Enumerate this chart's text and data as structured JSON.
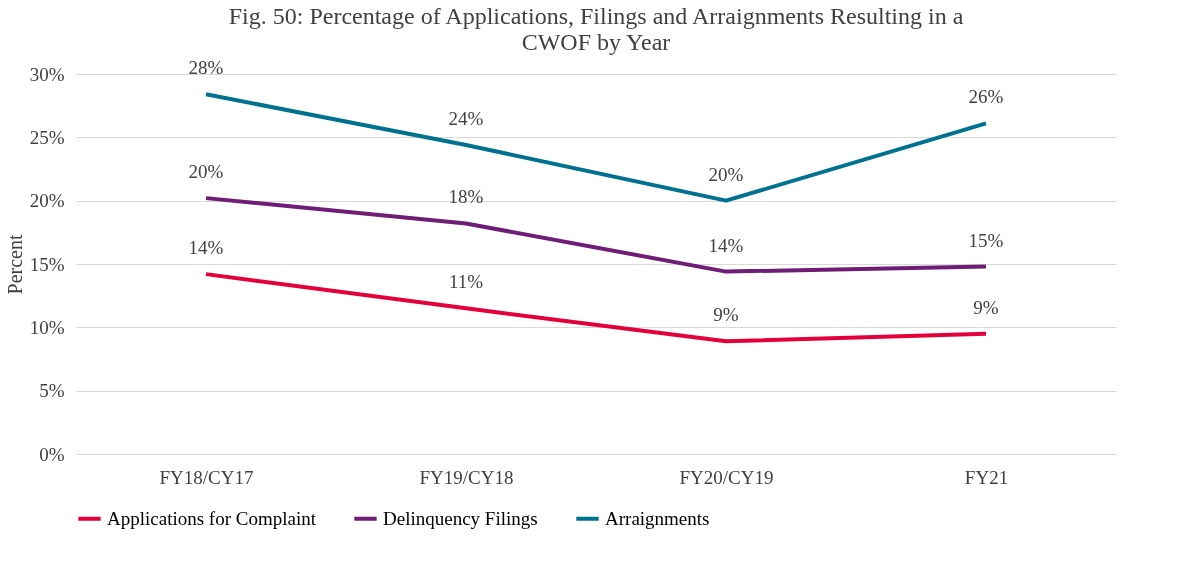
{
  "chart_data": {
    "type": "line",
    "title": "Fig. 50: Percentage of Applications, Filings and Arraignments Resulting in a CWOF by Year",
    "ylabel": "Percent",
    "categories": [
      "FY18/CY17",
      "FY19/CY18",
      "FY20/CY19",
      "FY21"
    ],
    "series": [
      {
        "name": "Applications for Complaint",
        "color": "#e4003b",
        "values": [
          14.2,
          11.5,
          8.9,
          9.5
        ],
        "value_labels": [
          "14%",
          "11%",
          "9%",
          "9%"
        ]
      },
      {
        "name": "Delinquency Filings",
        "color": "#6f1d77",
        "values": [
          20.2,
          18.2,
          14.4,
          14.8
        ],
        "value_labels": [
          "20%",
          "18%",
          "14%",
          "15%"
        ]
      },
      {
        "name": "Arraignments",
        "color": "#00728f",
        "values": [
          28.4,
          24.4,
          20.0,
          26.1
        ],
        "value_labels": [
          "28%",
          "24%",
          "20%",
          "26%"
        ]
      }
    ],
    "ylim": [
      0,
      30
    ],
    "yticks": [
      {
        "value": 0,
        "label": "0%"
      },
      {
        "value": 5,
        "label": "5%"
      },
      {
        "value": 10,
        "label": "10%"
      },
      {
        "value": 15,
        "label": "15%"
      },
      {
        "value": 20,
        "label": "20%"
      },
      {
        "value": 25,
        "label": "25%"
      },
      {
        "value": 30,
        "label": "30%"
      }
    ],
    "grid": "y",
    "legend": "bottom",
    "marker": "none",
    "line_style": "solid"
  }
}
